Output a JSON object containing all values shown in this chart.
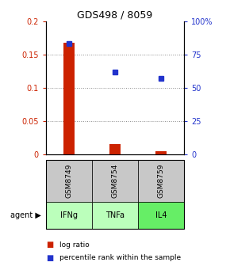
{
  "title": "GDS498 / 8059",
  "samples": [
    "GSM8749",
    "GSM8754",
    "GSM8759"
  ],
  "agents": [
    "IFNg",
    "TNFa",
    "IL4"
  ],
  "log_ratios": [
    0.168,
    0.015,
    0.005
  ],
  "percentile_ranks": [
    0.83,
    0.62,
    0.57
  ],
  "bar_color": "#cc2200",
  "dot_color": "#2233cc",
  "left_ylim": [
    0,
    0.2
  ],
  "right_ylim": [
    0,
    1.0
  ],
  "left_yticks": [
    0,
    0.05,
    0.1,
    0.15,
    0.2
  ],
  "left_yticklabels": [
    "0",
    "0.05",
    "0.1",
    "0.15",
    "0.2"
  ],
  "right_yticks": [
    0,
    0.25,
    0.5,
    0.75,
    1.0
  ],
  "right_yticklabels": [
    "0",
    "25",
    "50",
    "75",
    "100%"
  ],
  "grid_color": "#888888",
  "sample_box_color": "#c8c8c8",
  "agent_box_colors": [
    "#bbffbb",
    "#bbffbb",
    "#66ee66"
  ],
  "agent_label": "agent",
  "legend_log_ratio": "log ratio",
  "legend_percentile": "percentile rank within the sample",
  "bar_width": 0.25,
  "title_fontsize": 9,
  "tick_fontsize": 7,
  "label_fontsize": 7,
  "legend_fontsize": 6.5
}
